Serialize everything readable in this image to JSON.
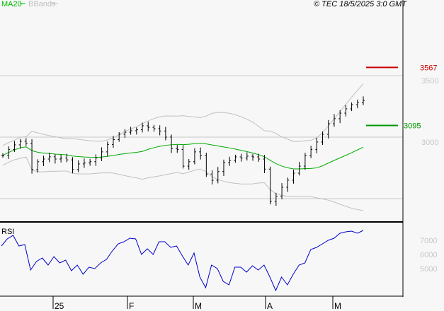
{
  "legend": {
    "ma": "MA20",
    "bbands": "BBands"
  },
  "copyright": "© TEC 18/5/2025 3:0 GMT",
  "colors": {
    "ma": "#00aa00",
    "bbands": "#c0c0c0",
    "rsi": "#0000cc",
    "resistance": "#cc0000",
    "support": "#009900"
  },
  "chart_data": [
    {
      "type": "ohlc",
      "title": "Price",
      "ylim": [
        2330,
        3680
      ],
      "yticks": [
        {
          "value": 3500,
          "label": "3500"
        },
        {
          "value": 3000,
          "label": "3000"
        }
      ],
      "levels": [
        {
          "name": "resistance",
          "value": 3567,
          "label": "3567"
        },
        {
          "name": "support",
          "value": 3095,
          "label": "3095"
        }
      ],
      "closes": [
        2851,
        2900,
        2937,
        2966,
        2950,
        2736,
        2800,
        2822,
        2840,
        2822,
        2830,
        2815,
        2736,
        2782,
        2790,
        2800,
        2830,
        2880,
        2940,
        2980,
        3023,
        3040,
        3052,
        3060,
        3092,
        3080,
        3069,
        3050,
        3000,
        2908,
        2900,
        2764,
        2800,
        2880,
        2850,
        2700,
        2649,
        2720,
        2793,
        2810,
        2839,
        2830,
        2845,
        2839,
        2822,
        2740,
        2477,
        2520,
        2592,
        2650,
        2707,
        2764,
        2850,
        2900,
        2960,
        3023,
        3109,
        3150,
        3195,
        3230,
        3264,
        3280,
        3299
      ]
    },
    {
      "type": "line",
      "title": "RSI",
      "ylim": [
        30,
        80
      ],
      "yticks": [
        {
          "value": 70,
          "label": "7000"
        },
        {
          "value": 60,
          "label": "6000"
        },
        {
          "value": 50,
          "label": "5000"
        }
      ],
      "values": [
        66,
        71,
        73.5,
        66,
        67,
        49,
        55,
        57.5,
        52.5,
        58.5,
        54,
        56,
        48.5,
        52.5,
        46,
        51,
        50,
        54,
        56.5,
        62.5,
        67.5,
        69,
        71.5,
        71,
        60,
        64,
        60,
        69,
        69,
        65,
        66,
        59,
        52.5,
        61,
        44,
        36.5,
        52.5,
        50,
        41,
        38.5,
        51,
        51,
        47.5,
        52,
        49,
        52.5,
        44,
        34.5,
        44,
        38.5,
        46,
        52.5,
        54,
        63.5,
        65,
        67.5,
        70,
        71.5,
        75,
        76,
        76.5,
        75,
        77
      ]
    }
  ],
  "xaxis": [
    "25",
    "F",
    "M",
    "A",
    "M"
  ],
  "rsi_label": "RSI"
}
